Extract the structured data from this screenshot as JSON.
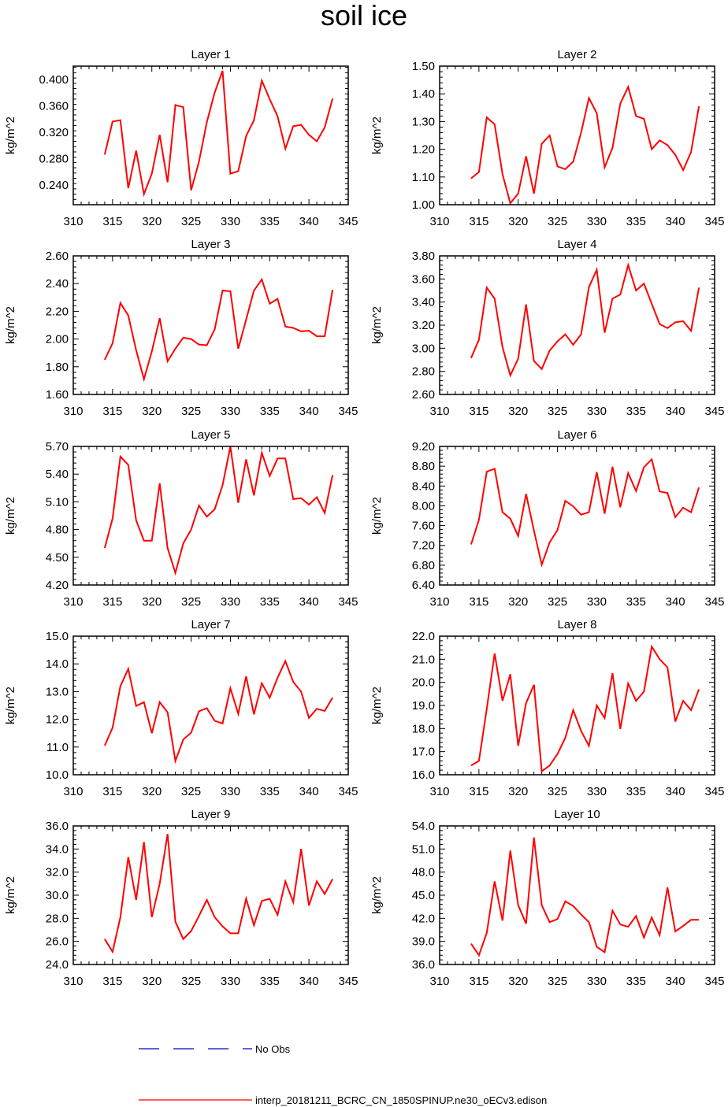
{
  "title": "soil ice",
  "legend": [
    {
      "label": "No Obs",
      "color": "#0000cc",
      "dashed": true
    },
    {
      "label": "interp_20181211_BCRC_CN_1850SPINUP.ne30_oECv3.edison",
      "color": "#ff0000",
      "dashed": false
    }
  ],
  "chart_data": [
    {
      "type": "line",
      "title": "Layer 1",
      "ylabel": "kg/m^2",
      "xlim": [
        310,
        345
      ],
      "xticks": [
        310,
        315,
        320,
        325,
        330,
        335,
        340,
        345
      ],
      "ylim": [
        0.21,
        0.42
      ],
      "yticks": [
        "0.240",
        "0.280",
        "0.320",
        "0.360",
        "0.400"
      ],
      "x": [
        314,
        315,
        316,
        317,
        318,
        319,
        320,
        321,
        322,
        323,
        324,
        325,
        326,
        327,
        328,
        329,
        330,
        331,
        332,
        333,
        334,
        335,
        336,
        337,
        338,
        339,
        340,
        341,
        342,
        343
      ],
      "series": [
        {
          "color": "#ff0000",
          "values": [
            0.286,
            0.336,
            0.338,
            0.235,
            0.292,
            0.226,
            0.257,
            0.316,
            0.244,
            0.361,
            0.358,
            0.232,
            0.275,
            0.335,
            0.38,
            0.413,
            0.257,
            0.261,
            0.314,
            0.338,
            0.398,
            0.37,
            0.344,
            0.295,
            0.329,
            0.331,
            0.316,
            0.306,
            0.327,
            0.371
          ]
        }
      ]
    },
    {
      "type": "line",
      "title": "Layer 2",
      "ylabel": "kg/m^2",
      "xlim": [
        310,
        345
      ],
      "xticks": [
        310,
        315,
        320,
        325,
        330,
        335,
        340,
        345
      ],
      "ylim": [
        1.0,
        1.5
      ],
      "yticks": [
        "1.00",
        "1.10",
        "1.20",
        "1.30",
        "1.40",
        "1.50"
      ],
      "x": [
        314,
        315,
        316,
        317,
        318,
        319,
        320,
        321,
        322,
        323,
        324,
        325,
        326,
        327,
        328,
        329,
        330,
        331,
        332,
        333,
        334,
        335,
        336,
        337,
        338,
        339,
        340,
        341,
        342,
        343
      ],
      "series": [
        {
          "color": "#ff0000",
          "values": [
            1.095,
            1.118,
            1.315,
            1.29,
            1.11,
            1.005,
            1.04,
            1.175,
            1.04,
            1.22,
            1.25,
            1.138,
            1.128,
            1.155,
            1.26,
            1.385,
            1.33,
            1.135,
            1.205,
            1.365,
            1.425,
            1.32,
            1.31,
            1.2,
            1.232,
            1.215,
            1.18,
            1.125,
            1.19,
            1.355
          ]
        }
      ]
    },
    {
      "type": "line",
      "title": "Layer 3",
      "ylabel": "kg/m^2",
      "xlim": [
        310,
        345
      ],
      "xticks": [
        310,
        315,
        320,
        325,
        330,
        335,
        340,
        345
      ],
      "ylim": [
        1.6,
        2.6
      ],
      "yticks": [
        "1.60",
        "1.80",
        "2.00",
        "2.20",
        "2.40",
        "2.60"
      ],
      "x": [
        314,
        315,
        316,
        317,
        318,
        319,
        320,
        321,
        322,
        323,
        324,
        325,
        326,
        327,
        328,
        329,
        330,
        331,
        332,
        333,
        334,
        335,
        336,
        337,
        338,
        339,
        340,
        341,
        342,
        343
      ],
      "series": [
        {
          "color": "#ff0000",
          "values": [
            1.85,
            1.97,
            2.26,
            2.17,
            1.92,
            1.71,
            1.91,
            2.15,
            1.84,
            1.93,
            2.01,
            2.0,
            1.96,
            1.955,
            2.07,
            2.35,
            2.345,
            1.93,
            2.14,
            2.35,
            2.43,
            2.255,
            2.29,
            2.09,
            2.08,
            2.055,
            2.06,
            2.02,
            2.02,
            2.355
          ]
        }
      ]
    },
    {
      "type": "line",
      "title": "Layer 4",
      "ylabel": "kg/m^2",
      "xlim": [
        310,
        345
      ],
      "xticks": [
        310,
        315,
        320,
        325,
        330,
        335,
        340,
        345
      ],
      "ylim": [
        2.6,
        3.8
      ],
      "yticks": [
        "2.60",
        "2.80",
        "3.00",
        "3.20",
        "3.40",
        "3.60",
        "3.80"
      ],
      "x": [
        314,
        315,
        316,
        317,
        318,
        319,
        320,
        321,
        322,
        323,
        324,
        325,
        326,
        327,
        328,
        329,
        330,
        331,
        332,
        333,
        334,
        335,
        336,
        337,
        338,
        339,
        340,
        341,
        342,
        343
      ],
      "series": [
        {
          "color": "#ff0000",
          "values": [
            2.915,
            3.075,
            3.525,
            3.43,
            3.01,
            2.765,
            2.91,
            3.38,
            2.89,
            2.82,
            2.98,
            3.06,
            3.12,
            3.03,
            3.12,
            3.53,
            3.68,
            3.135,
            3.43,
            3.465,
            3.72,
            3.5,
            3.56,
            3.385,
            3.21,
            3.175,
            3.225,
            3.235,
            3.15,
            3.525
          ]
        }
      ]
    },
    {
      "type": "line",
      "title": "Layer 5",
      "ylabel": "kg/m^2",
      "xlim": [
        310,
        345
      ],
      "xticks": [
        310,
        315,
        320,
        325,
        330,
        335,
        340,
        345
      ],
      "ylim": [
        4.2,
        5.7
      ],
      "yticks": [
        "4.20",
        "4.50",
        "4.80",
        "5.10",
        "5.40",
        "5.70"
      ],
      "x": [
        314,
        315,
        316,
        317,
        318,
        319,
        320,
        321,
        322,
        323,
        324,
        325,
        326,
        327,
        328,
        329,
        330,
        331,
        332,
        333,
        334,
        335,
        336,
        337,
        338,
        339,
        340,
        341,
        342,
        343
      ],
      "series": [
        {
          "color": "#ff0000",
          "values": [
            4.6,
            4.92,
            5.59,
            5.5,
            4.9,
            4.68,
            4.68,
            5.3,
            4.6,
            4.33,
            4.65,
            4.8,
            5.06,
            4.94,
            5.02,
            5.28,
            5.7,
            5.09,
            5.56,
            5.17,
            5.63,
            5.38,
            5.57,
            5.57,
            5.13,
            5.14,
            5.07,
            5.15,
            4.98,
            5.39
          ]
        }
      ]
    },
    {
      "type": "line",
      "title": "Layer 6",
      "ylabel": "kg/m^2",
      "xlim": [
        310,
        345
      ],
      "xticks": [
        310,
        315,
        320,
        325,
        330,
        335,
        340,
        345
      ],
      "ylim": [
        6.4,
        9.2
      ],
      "yticks": [
        "6.40",
        "6.80",
        "7.20",
        "7.60",
        "8.00",
        "8.40",
        "8.80",
        "9.20"
      ],
      "x": [
        314,
        315,
        316,
        317,
        318,
        319,
        320,
        321,
        322,
        323,
        324,
        325,
        326,
        327,
        328,
        329,
        330,
        331,
        332,
        333,
        334,
        335,
        336,
        337,
        338,
        339,
        340,
        341,
        342,
        343
      ],
      "series": [
        {
          "color": "#ff0000",
          "values": [
            7.22,
            7.72,
            8.69,
            8.75,
            7.87,
            7.74,
            7.39,
            8.24,
            7.5,
            6.81,
            7.26,
            7.51,
            8.1,
            7.99,
            7.82,
            7.87,
            8.68,
            7.84,
            8.79,
            7.97,
            8.66,
            8.3,
            8.78,
            8.94,
            8.29,
            8.26,
            7.77,
            7.96,
            7.87,
            8.37
          ]
        }
      ]
    },
    {
      "type": "line",
      "title": "Layer 7",
      "ylabel": "kg/m^2",
      "xlim": [
        310,
        345
      ],
      "xticks": [
        310,
        315,
        320,
        325,
        330,
        335,
        340,
        345
      ],
      "ylim": [
        10.0,
        15.0
      ],
      "yticks": [
        "10.0",
        "11.0",
        "12.0",
        "13.0",
        "14.0",
        "15.0"
      ],
      "x": [
        314,
        315,
        316,
        317,
        318,
        319,
        320,
        321,
        322,
        323,
        324,
        325,
        326,
        327,
        328,
        329,
        330,
        331,
        332,
        333,
        334,
        335,
        336,
        337,
        338,
        339,
        340,
        341,
        342,
        343
      ],
      "series": [
        {
          "color": "#ff0000",
          "values": [
            11.05,
            11.7,
            13.2,
            13.82,
            12.48,
            12.62,
            11.5,
            12.62,
            12.25,
            10.5,
            11.27,
            11.52,
            12.29,
            12.4,
            11.95,
            11.85,
            13.12,
            12.2,
            13.55,
            12.18,
            13.3,
            12.78,
            13.5,
            14.1,
            13.35,
            13.0,
            12.05,
            12.38,
            12.3,
            12.78
          ]
        }
      ]
    },
    {
      "type": "line",
      "title": "Layer 8",
      "ylabel": "kg/m^2",
      "xlim": [
        310,
        345
      ],
      "xticks": [
        310,
        315,
        320,
        325,
        330,
        335,
        340,
        345
      ],
      "ylim": [
        16.0,
        22.0
      ],
      "yticks": [
        "16.0",
        "17.0",
        "18.0",
        "19.0",
        "20.0",
        "21.0",
        "22.0"
      ],
      "x": [
        314,
        315,
        316,
        317,
        318,
        319,
        320,
        321,
        322,
        323,
        324,
        325,
        326,
        327,
        328,
        329,
        330,
        331,
        332,
        333,
        334,
        335,
        336,
        337,
        338,
        339,
        340,
        341,
        342,
        343
      ],
      "series": [
        {
          "color": "#ff0000",
          "values": [
            16.4,
            16.6,
            18.85,
            21.25,
            19.2,
            20.35,
            17.25,
            19.1,
            19.9,
            16.15,
            16.4,
            16.9,
            17.6,
            18.8,
            17.9,
            17.25,
            19.0,
            18.45,
            20.4,
            17.98,
            19.95,
            19.2,
            19.6,
            21.55,
            21.0,
            20.65,
            18.3,
            19.2,
            18.8,
            19.7
          ]
        }
      ]
    },
    {
      "type": "line",
      "title": "Layer 9",
      "ylabel": "kg/m^2",
      "xlim": [
        310,
        345
      ],
      "xticks": [
        310,
        315,
        320,
        325,
        330,
        335,
        340,
        345
      ],
      "ylim": [
        24.0,
        36.0
      ],
      "yticks": [
        "24.0",
        "26.0",
        "28.0",
        "30.0",
        "32.0",
        "34.0",
        "36.0"
      ],
      "x": [
        314,
        315,
        316,
        317,
        318,
        319,
        320,
        321,
        322,
        323,
        324,
        325,
        326,
        327,
        328,
        329,
        330,
        331,
        332,
        333,
        334,
        335,
        336,
        337,
        338,
        339,
        340,
        341,
        342,
        343
      ],
      "series": [
        {
          "color": "#ff0000",
          "values": [
            26.2,
            25.1,
            28.1,
            33.3,
            29.6,
            34.6,
            28.1,
            31.0,
            35.3,
            27.7,
            26.2,
            26.9,
            28.2,
            29.6,
            28.1,
            27.3,
            26.7,
            26.7,
            29.7,
            27.4,
            29.5,
            29.7,
            28.3,
            31.2,
            29.4,
            34.0,
            29.1,
            31.2,
            30.1,
            31.4
          ]
        }
      ]
    },
    {
      "type": "line",
      "title": "Layer 10",
      "ylabel": "kg/m^2",
      "xlim": [
        310,
        345
      ],
      "xticks": [
        310,
        315,
        320,
        325,
        330,
        335,
        340,
        345
      ],
      "ylim": [
        36.0,
        54.0
      ],
      "yticks": [
        "36.0",
        "39.0",
        "42.0",
        "45.0",
        "48.0",
        "51.0",
        "54.0"
      ],
      "x": [
        314,
        315,
        316,
        317,
        318,
        319,
        320,
        321,
        322,
        323,
        324,
        325,
        326,
        327,
        328,
        329,
        330,
        331,
        332,
        333,
        334,
        335,
        336,
        337,
        338,
        339,
        340,
        341,
        342,
        343
      ],
      "series": [
        {
          "color": "#ff0000",
          "values": [
            38.7,
            37.2,
            40.1,
            46.8,
            41.7,
            50.8,
            43.7,
            41.3,
            52.5,
            43.7,
            41.5,
            41.9,
            44.2,
            43.6,
            42.5,
            41.5,
            38.3,
            37.6,
            43.0,
            41.2,
            40.9,
            42.3,
            39.5,
            42.1,
            39.8,
            46.0,
            40.3,
            41.0,
            41.8,
            41.8
          ]
        }
      ]
    }
  ]
}
